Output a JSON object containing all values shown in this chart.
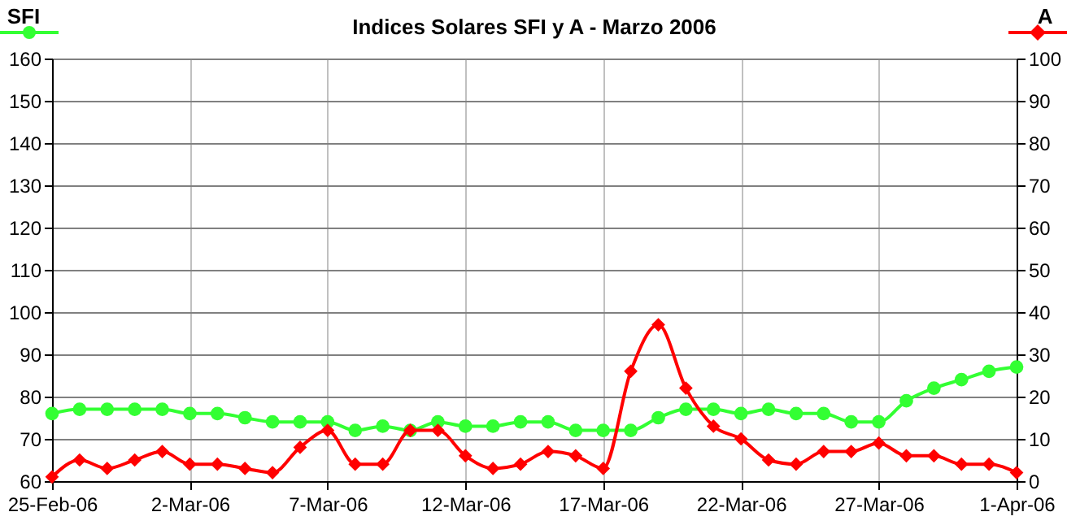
{
  "chart_data": {
    "type": "line",
    "title": "Indices Solares SFI y A - Marzo 2006",
    "ylabel": "SFI",
    "y2label": "A",
    "x": [
      "2006-02-25",
      "2006-02-26",
      "2006-02-27",
      "2006-02-28",
      "2006-03-01",
      "2006-03-02",
      "2006-03-03",
      "2006-03-04",
      "2006-03-05",
      "2006-03-06",
      "2006-03-07",
      "2006-03-08",
      "2006-03-09",
      "2006-03-10",
      "2006-03-11",
      "2006-03-12",
      "2006-03-13",
      "2006-03-14",
      "2006-03-15",
      "2006-03-16",
      "2006-03-17",
      "2006-03-18",
      "2006-03-19",
      "2006-03-20",
      "2006-03-21",
      "2006-03-22",
      "2006-03-23",
      "2006-03-24",
      "2006-03-25",
      "2006-03-26",
      "2006-03-27",
      "2006-03-28",
      "2006-03-29",
      "2006-03-30",
      "2006-03-31",
      "2006-04-01"
    ],
    "series": [
      {
        "color": "#33ff33",
        "marker": "circle",
        "values": [
          76,
          77,
          77,
          77,
          77,
          76,
          76,
          75,
          74,
          74,
          74,
          72,
          73,
          72,
          74,
          73,
          73,
          74,
          74,
          72,
          72,
          72,
          75,
          77,
          77,
          76,
          77,
          76,
          76,
          74,
          74,
          79,
          82,
          84,
          86,
          87
        ]
      },
      {
        "color": "#ff0000",
        "marker": "diamond",
        "axis": "y2",
        "values": [
          1,
          5,
          3,
          5,
          7,
          4,
          4,
          3,
          2,
          8,
          12,
          4,
          4,
          12,
          12,
          6,
          3,
          4,
          7,
          6,
          3,
          26,
          37,
          22,
          13,
          10,
          5,
          4,
          7,
          7,
          9,
          6,
          6,
          4,
          4,
          2
        ]
      }
    ],
    "xlim": [
      "2006-02-25",
      "2006-04-01"
    ],
    "xticks": [
      {
        "value": "2006-02-25",
        "label": "25-Feb-06"
      },
      {
        "value": "2006-03-02",
        "label": "2-Mar-06"
      },
      {
        "value": "2006-03-07",
        "label": "7-Mar-06"
      },
      {
        "value": "2006-03-12",
        "label": "12-Mar-06"
      },
      {
        "value": "2006-03-17",
        "label": "17-Mar-06"
      },
      {
        "value": "2006-03-22",
        "label": "22-Mar-06"
      },
      {
        "value": "2006-03-27",
        "label": "27-Mar-06"
      },
      {
        "value": "2006-04-01",
        "label": "1-Apr-06"
      }
    ],
    "ylim": [
      60,
      160
    ],
    "yticks": [
      60,
      70,
      80,
      90,
      100,
      110,
      120,
      130,
      140,
      150,
      160
    ],
    "y2lim": [
      0,
      100
    ],
    "y2ticks": [
      0,
      10,
      20,
      30,
      40,
      50,
      60,
      70,
      80,
      90,
      100
    ],
    "grid": true,
    "line_style": "solid"
  }
}
